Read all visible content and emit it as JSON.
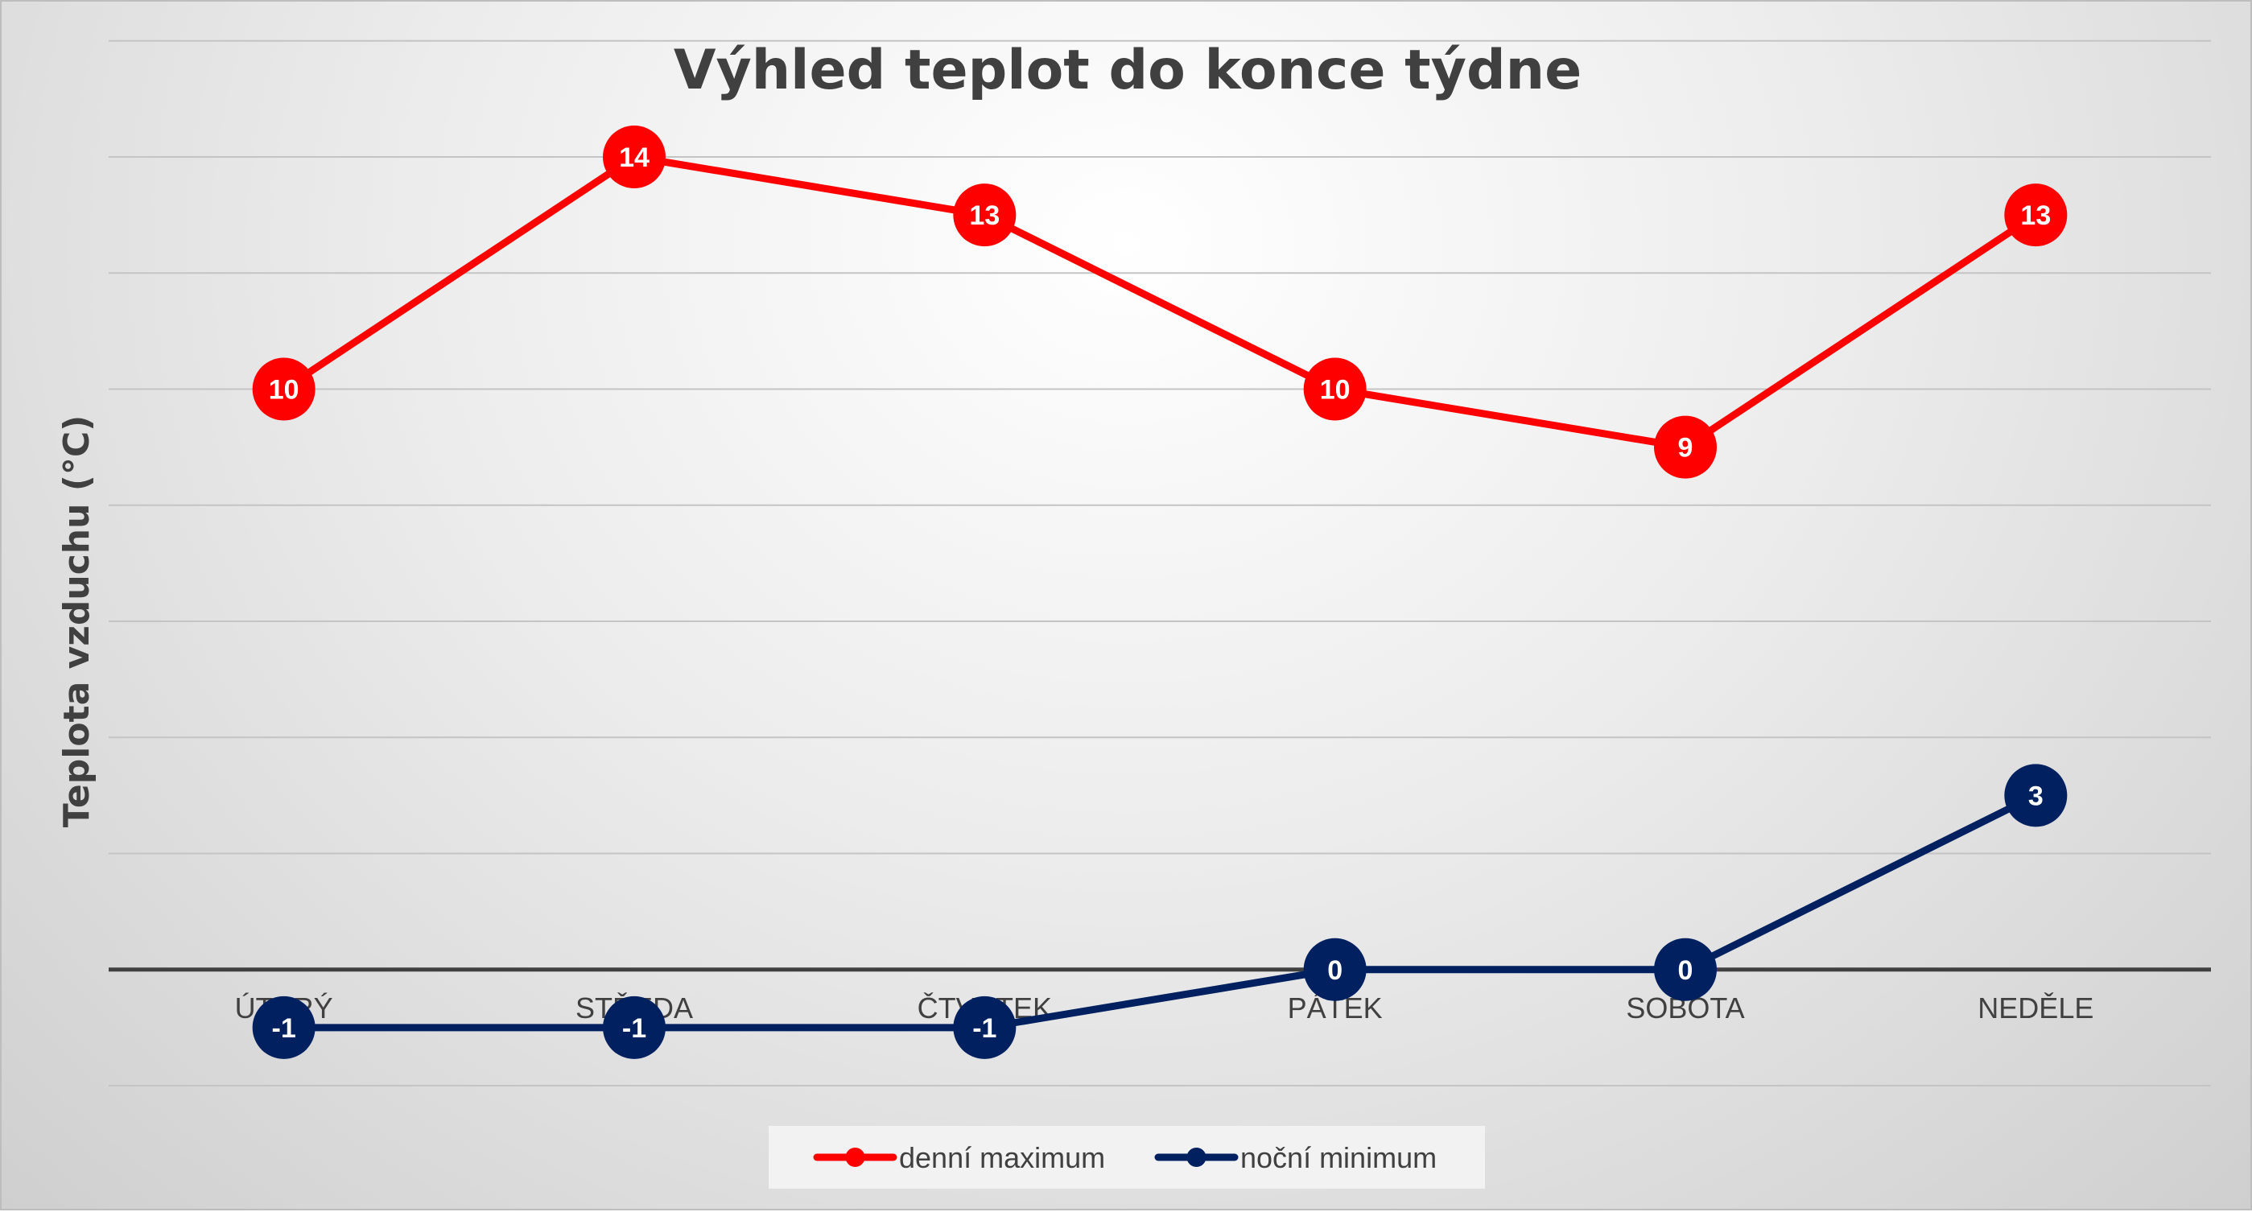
{
  "chart_data": {
    "type": "line",
    "title": "Výhled teplot do konce týdne",
    "ylabel": "Teplota vzduchu (°C)",
    "xlabel": "",
    "categories": [
      "ÚTERÝ",
      "STŘEDA",
      "ČTVRTEK",
      "PÁTEK",
      "SOBOTA",
      "NEDĚLE"
    ],
    "ylim": [
      -2,
      14
    ],
    "grid_step": 2,
    "grid": true,
    "y_tick_labels": false,
    "legend_position": "bottom",
    "series": [
      {
        "name": "denní maximum",
        "color": "#ff0000",
        "values": [
          10,
          14,
          13,
          10,
          9,
          13
        ]
      },
      {
        "name": "noční minimum",
        "color": "#002060",
        "values": [
          -1,
          -1,
          -1,
          0,
          0,
          3
        ]
      }
    ]
  }
}
